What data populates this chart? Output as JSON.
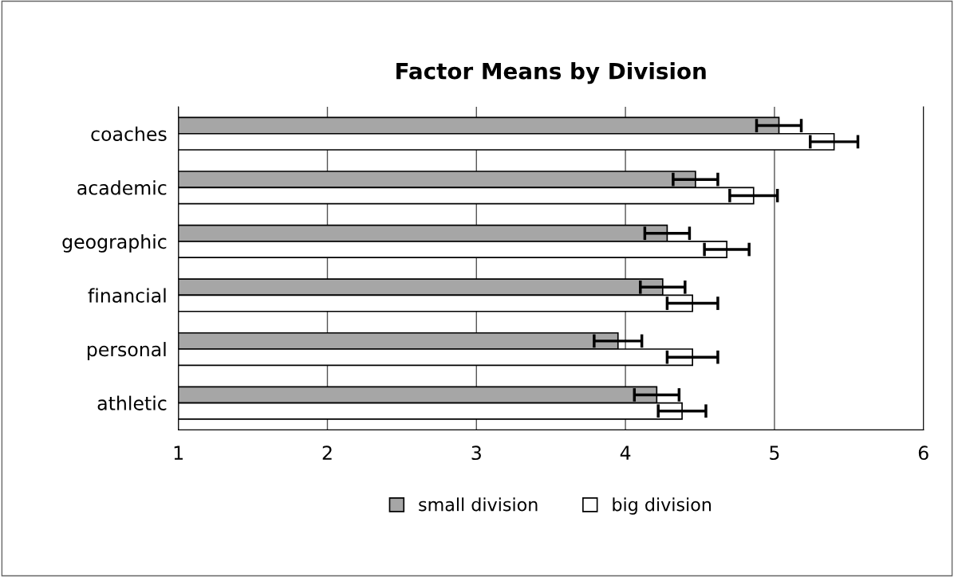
{
  "chart_data": {
    "type": "bar",
    "orientation": "horizontal",
    "title": "Factor Means by Division",
    "categories": [
      "coaches",
      "academic",
      "geographic",
      "financial",
      "personal",
      "athletic"
    ],
    "series": [
      {
        "name": "small division",
        "color": "#a6a6a6",
        "values": [
          5.03,
          4.47,
          4.28,
          4.25,
          3.95,
          4.21
        ],
        "errors": [
          0.15,
          0.15,
          0.15,
          0.15,
          0.16,
          0.15
        ]
      },
      {
        "name": "big division",
        "color": "#ffffff",
        "values": [
          5.4,
          4.86,
          4.68,
          4.45,
          4.45,
          4.38
        ],
        "errors": [
          0.16,
          0.16,
          0.15,
          0.17,
          0.17,
          0.16
        ]
      }
    ],
    "xlim": [
      1,
      6
    ],
    "xticks": [
      1,
      2,
      3,
      4,
      5,
      6
    ],
    "grid": "x",
    "legend": "bottom"
  }
}
